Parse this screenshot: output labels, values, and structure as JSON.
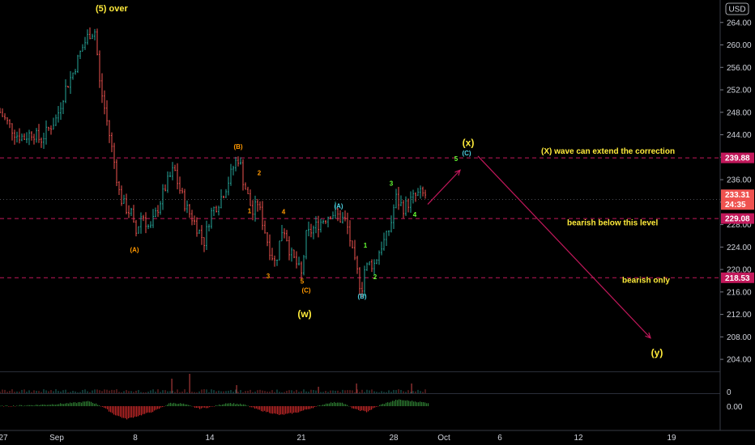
{
  "currency": "USD",
  "colors": {
    "background": "#000000",
    "up": "#26a69a",
    "down": "#ef5350",
    "red_line": "#c2185b",
    "annotation_yellow": "#ffeb3b",
    "wave_orange": "#ff9800",
    "wave_cyan": "#4dd0e1",
    "wave_green": "#66ff33",
    "axis_text": "#d1d4dc"
  },
  "chart_data": {
    "type": "candlestick",
    "ylim": [
      202,
      268
    ],
    "y_ticks": [
      "264.00",
      "260.00",
      "256.00",
      "252.00",
      "248.00",
      "244.00",
      "240.00",
      "236.00",
      "232.00",
      "228.00",
      "224.00",
      "220.00",
      "216.00",
      "212.00",
      "208.00",
      "204.00"
    ],
    "x_tick_labels": [
      "27",
      "Sep",
      "8",
      "14",
      "21",
      "28",
      "Oct",
      "6",
      "12",
      "19"
    ],
    "price_labels": [
      {
        "value": "239.88",
        "color": "#c2185b"
      },
      {
        "value": "233.31",
        "color": "#ef5350"
      },
      {
        "value": "24:35",
        "color": "#ef5350"
      },
      {
        "value": "229.08",
        "color": "#c2185b"
      },
      {
        "value": "218.53",
        "color": "#c2185b"
      }
    ],
    "horizontal_levels": [
      239.88,
      229.08,
      218.53
    ],
    "path": [
      [
        0,
        248
      ],
      [
        10,
        246
      ],
      [
        20,
        244
      ],
      [
        30,
        243.5
      ],
      [
        40,
        244.5
      ],
      [
        50,
        243
      ],
      [
        60,
        245
      ],
      [
        70,
        247
      ],
      [
        80,
        252
      ],
      [
        90,
        255
      ],
      [
        100,
        259
      ],
      [
        110,
        262
      ],
      [
        118,
        262.5
      ],
      [
        122,
        254
      ],
      [
        130,
        248
      ],
      [
        140,
        240
      ],
      [
        148,
        233
      ],
      [
        155,
        231
      ],
      [
        162,
        230
      ],
      [
        167,
        226
      ],
      [
        175,
        230
      ],
      [
        185,
        227
      ],
      [
        195,
        231
      ],
      [
        205,
        235
      ],
      [
        215,
        238
      ],
      [
        220,
        235
      ],
      [
        230,
        231
      ],
      [
        238,
        229
      ],
      [
        245,
        227
      ],
      [
        252,
        225
      ],
      [
        260,
        230
      ],
      [
        270,
        232
      ],
      [
        280,
        235
      ],
      [
        290,
        239
      ],
      [
        295,
        240
      ],
      [
        300,
        236
      ],
      [
        308,
        232
      ],
      [
        312,
        230
      ],
      [
        318,
        232
      ],
      [
        325,
        228
      ],
      [
        332,
        224
      ],
      [
        340,
        221
      ],
      [
        348,
        227
      ],
      [
        352,
        227
      ],
      [
        358,
        223
      ],
      [
        366,
        221
      ],
      [
        372,
        219
      ],
      [
        378,
        226
      ],
      [
        385,
        227
      ],
      [
        392,
        228
      ],
      [
        400,
        229
      ],
      [
        408,
        230
      ],
      [
        415,
        230
      ],
      [
        420,
        229
      ],
      [
        425,
        229
      ],
      [
        430,
        227
      ],
      [
        436,
        222
      ],
      [
        442,
        219
      ],
      [
        446,
        216
      ],
      [
        450,
        220
      ],
      [
        456,
        221
      ],
      [
        462,
        221
      ],
      [
        470,
        224
      ],
      [
        478,
        226
      ],
      [
        484,
        229
      ],
      [
        488,
        233
      ],
      [
        492,
        232
      ],
      [
        498,
        231
      ],
      [
        505,
        232
      ],
      [
        512,
        233
      ],
      [
        518,
        233.5
      ],
      [
        524,
        233.3
      ],
      [
        527,
        233.31
      ]
    ],
    "volume_spikes": [
      {
        "x": 212,
        "height": 18
      },
      {
        "x": 234,
        "height": 24
      },
      {
        "x": 292,
        "height": 10
      },
      {
        "x": 393,
        "height": 8
      },
      {
        "x": 440,
        "height": 12
      },
      {
        "x": 508,
        "height": 12
      }
    ],
    "oscillator": [
      [
        0,
        0
      ],
      [
        30,
        1
      ],
      [
        60,
        2
      ],
      [
        90,
        4
      ],
      [
        110,
        6
      ],
      [
        125,
        0
      ],
      [
        140,
        -10
      ],
      [
        155,
        -16
      ],
      [
        170,
        -12
      ],
      [
        190,
        -6
      ],
      [
        210,
        4
      ],
      [
        225,
        3
      ],
      [
        245,
        -3
      ],
      [
        260,
        -1
      ],
      [
        280,
        4
      ],
      [
        300,
        2
      ],
      [
        320,
        -5
      ],
      [
        345,
        -11
      ],
      [
        365,
        -8
      ],
      [
        385,
        -2
      ],
      [
        405,
        4
      ],
      [
        420,
        5
      ],
      [
        438,
        -4
      ],
      [
        452,
        -7
      ],
      [
        470,
        2
      ],
      [
        490,
        8
      ],
      [
        510,
        6
      ],
      [
        528,
        4
      ]
    ],
    "oscillator_label": "0.00",
    "volume_label": "0",
    "projection_lines": [
      {
        "from": [
          528,
          231.6
        ],
        "to": [
          568,
          237.7
        ],
        "arrow": true,
        "color": "#c2185b"
      },
      {
        "from": [
          590,
          240.2
        ],
        "to": [
          803,
          207.8
        ],
        "arrow": true,
        "color": "#c2185b"
      }
    ],
    "annotations": [
      {
        "text": "(5) over",
        "t": 118,
        "y": 266,
        "color": "#ffeb3b",
        "size": 11
      },
      {
        "text": "(X) wave can extend the correction",
        "t": 668,
        "y": 240.6,
        "color": "#ffeb3b",
        "size": 10
      },
      {
        "text": "bearish below this level",
        "t": 700,
        "y": 227.9,
        "color": "#ffeb3b",
        "size": 10
      },
      {
        "text": "bearish only",
        "t": 768,
        "y": 217.6,
        "color": "#ffeb3b",
        "size": 10
      },
      {
        "text": "(x)",
        "t": 578,
        "y": 242,
        "color": "#ffeb3b",
        "size": 12
      },
      {
        "text": "(w)",
        "t": 376,
        "y": 211.5,
        "color": "#ffeb3b",
        "size": 12
      },
      {
        "text": "(y)",
        "t": 811,
        "y": 204.6,
        "color": "#ffeb3b",
        "size": 12
      },
      {
        "text": "(A)",
        "t": 166,
        "y": 223.1,
        "color": "#ff9800",
        "size": 8
      },
      {
        "text": "(B)",
        "t": 294,
        "y": 241.5,
        "color": "#ff9800",
        "size": 8
      },
      {
        "text": "(C)",
        "t": 378,
        "y": 215.9,
        "color": "#ff9800",
        "size": 8
      },
      {
        "text": "1",
        "t": 308,
        "y": 230,
        "color": "#ff9800",
        "size": 8
      },
      {
        "text": "2",
        "t": 320,
        "y": 236.8,
        "color": "#ff9800",
        "size": 8
      },
      {
        "text": "3",
        "t": 331,
        "y": 218.4,
        "color": "#ff9800",
        "size": 8
      },
      {
        "text": "4",
        "t": 350,
        "y": 229.9,
        "color": "#ff9800",
        "size": 8
      },
      {
        "text": "5",
        "t": 373,
        "y": 217.5,
        "color": "#ff9800",
        "size": 8
      },
      {
        "text": "(A)",
        "t": 418,
        "y": 230.9,
        "color": "#4dd0e1",
        "size": 8
      },
      {
        "text": "(B)",
        "t": 447,
        "y": 214.8,
        "color": "#4dd0e1",
        "size": 8
      },
      {
        "text": "(C)",
        "t": 576,
        "y": 240.3,
        "color": "#4dd0e1",
        "size": 8
      },
      {
        "text": "1",
        "t": 451,
        "y": 223.9,
        "color": "#66ff33",
        "size": 8
      },
      {
        "text": "2",
        "t": 463,
        "y": 218.3,
        "color": "#66ff33",
        "size": 8
      },
      {
        "text": "3",
        "t": 483,
        "y": 234.9,
        "color": "#66ff33",
        "size": 8
      },
      {
        "text": "4",
        "t": 512,
        "y": 229.4,
        "color": "#66ff33",
        "size": 8
      },
      {
        "text": "5",
        "t": 563,
        "y": 239.3,
        "color": "#66ff33",
        "size": 8
      }
    ]
  }
}
